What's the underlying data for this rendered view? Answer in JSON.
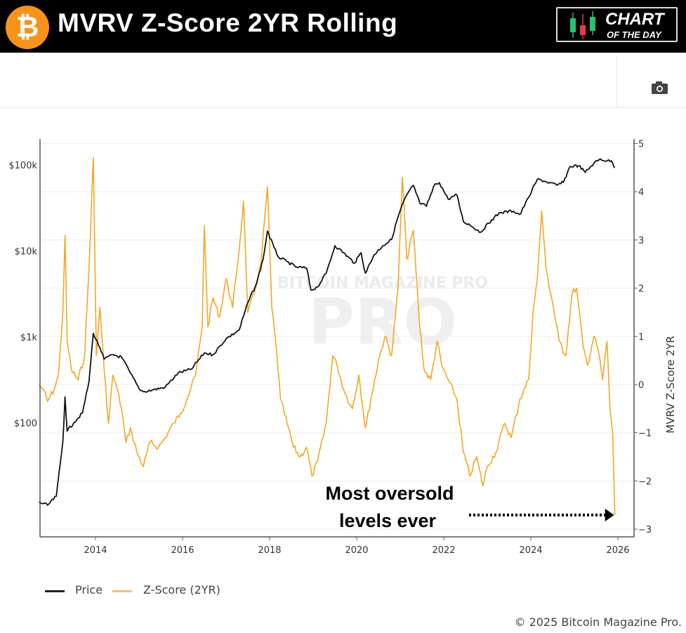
{
  "header": {
    "title": "MVRV Z-Score 2YR Rolling",
    "logo_symbol": "₿",
    "badge_line1": "CHART",
    "badge_line2": "OF THE DAY"
  },
  "toolbar": {
    "camera_icon": "camera-icon"
  },
  "watermark": "BITCOIN MAGAZINE PRO",
  "copyright": "© 2025 Bitcoin Magazine Pro.",
  "colors": {
    "price": "#111111",
    "zscore": "#f5a623",
    "bitcoin": "#f7931a"
  },
  "chart_data": {
    "type": "line",
    "title": "MVRV Z-Score 2YR Rolling",
    "xlabel": "",
    "ylabel_left": "",
    "ylabel_right": "MVRV Z-Score 2YR",
    "x_ticks": [
      "2014",
      "2016",
      "2018",
      "2020",
      "2022",
      "2024",
      "2026"
    ],
    "xlim": [
      2012.65,
      2026.35
    ],
    "y_left_scale": "log",
    "y_left_ticks": [
      {
        "value": 100,
        "label": "$100"
      },
      {
        "value": 1000,
        "label": "$1k"
      },
      {
        "value": 10000,
        "label": "$10k"
      },
      {
        "value": 100000,
        "label": "$100k"
      }
    ],
    "y_right_ticks": [
      "5",
      "4",
      "3",
      "2",
      "1",
      "0",
      "−1",
      "−2",
      "−3"
    ],
    "y_right_lim": [
      -3.1,
      5.1
    ],
    "grid": true,
    "legend_position": "bottom-left",
    "series": [
      {
        "name": "Price",
        "axis": "left",
        "points": [
          [
            2012.7,
            12
          ],
          [
            2012.9,
            11
          ],
          [
            2013.1,
            14
          ],
          [
            2013.25,
            60
          ],
          [
            2013.3,
            200
          ],
          [
            2013.35,
            80
          ],
          [
            2013.5,
            100
          ],
          [
            2013.7,
            130
          ],
          [
            2013.85,
            300
          ],
          [
            2013.95,
            1100
          ],
          [
            2014.1,
            750
          ],
          [
            2014.2,
            550
          ],
          [
            2014.4,
            620
          ],
          [
            2014.6,
            580
          ],
          [
            2014.8,
            380
          ],
          [
            2015.0,
            250
          ],
          [
            2015.1,
            230
          ],
          [
            2015.3,
            240
          ],
          [
            2015.6,
            260
          ],
          [
            2015.9,
            380
          ],
          [
            2016.2,
            420
          ],
          [
            2016.5,
            650
          ],
          [
            2016.7,
            620
          ],
          [
            2017.0,
            950
          ],
          [
            2017.3,
            1200
          ],
          [
            2017.5,
            2500
          ],
          [
            2017.7,
            4200
          ],
          [
            2017.85,
            8000
          ],
          [
            2017.95,
            17000
          ],
          [
            2018.1,
            11000
          ],
          [
            2018.2,
            8500
          ],
          [
            2018.4,
            7500
          ],
          [
            2018.6,
            6500
          ],
          [
            2018.85,
            6300
          ],
          [
            2018.95,
            3500
          ],
          [
            2019.1,
            3800
          ],
          [
            2019.3,
            5500
          ],
          [
            2019.5,
            11500
          ],
          [
            2019.7,
            9500
          ],
          [
            2019.95,
            7200
          ],
          [
            2020.1,
            9500
          ],
          [
            2020.2,
            5500
          ],
          [
            2020.4,
            9000
          ],
          [
            2020.6,
            11500
          ],
          [
            2020.8,
            13500
          ],
          [
            2020.95,
            25000
          ],
          [
            2021.1,
            40000
          ],
          [
            2021.3,
            58000
          ],
          [
            2021.45,
            36000
          ],
          [
            2021.6,
            33000
          ],
          [
            2021.8,
            60000
          ],
          [
            2021.9,
            62000
          ],
          [
            2022.1,
            40000
          ],
          [
            2022.3,
            45000
          ],
          [
            2022.45,
            22000
          ],
          [
            2022.6,
            20000
          ],
          [
            2022.85,
            16500
          ],
          [
            2023.1,
            23000
          ],
          [
            2023.3,
            28000
          ],
          [
            2023.6,
            29000
          ],
          [
            2023.75,
            26500
          ],
          [
            2023.95,
            42000
          ],
          [
            2024.15,
            68000
          ],
          [
            2024.3,
            65000
          ],
          [
            2024.6,
            58000
          ],
          [
            2024.75,
            63000
          ],
          [
            2024.9,
            96000
          ],
          [
            2025.1,
            98000
          ],
          [
            2025.25,
            82000
          ],
          [
            2025.45,
            105000
          ],
          [
            2025.6,
            117000
          ],
          [
            2025.75,
            111000
          ],
          [
            2025.85,
            112000
          ],
          [
            2025.92,
            92000
          ]
        ]
      },
      {
        "name": "Z-Score (2YR)",
        "axis": "right",
        "points": [
          [
            2012.7,
            0
          ],
          [
            2012.8,
            -0.1
          ],
          [
            2012.9,
            -0.35
          ],
          [
            2013.05,
            -0.1
          ],
          [
            2013.15,
            0.2
          ],
          [
            2013.25,
            1.5
          ],
          [
            2013.3,
            3.1
          ],
          [
            2013.35,
            0.9
          ],
          [
            2013.45,
            0.3
          ],
          [
            2013.6,
            0.1
          ],
          [
            2013.75,
            0.6
          ],
          [
            2013.85,
            2.4
          ],
          [
            2013.95,
            4.7
          ],
          [
            2014.02,
            0.6
          ],
          [
            2014.1,
            1.6
          ],
          [
            2014.2,
            0.3
          ],
          [
            2014.3,
            -0.8
          ],
          [
            2014.4,
            0.2
          ],
          [
            2014.5,
            -0.1
          ],
          [
            2014.6,
            -0.5
          ],
          [
            2014.7,
            -1.2
          ],
          [
            2014.8,
            -0.9
          ],
          [
            2014.95,
            -1.4
          ],
          [
            2015.1,
            -1.7
          ],
          [
            2015.25,
            -1.2
          ],
          [
            2015.45,
            -1.3
          ],
          [
            2015.6,
            -1.1
          ],
          [
            2015.8,
            -0.8
          ],
          [
            2015.95,
            -0.6
          ],
          [
            2016.1,
            -0.3
          ],
          [
            2016.3,
            0.2
          ],
          [
            2016.45,
            1.2
          ],
          [
            2016.5,
            3.3
          ],
          [
            2016.58,
            1.2
          ],
          [
            2016.7,
            1.8
          ],
          [
            2016.85,
            1.4
          ],
          [
            2017.0,
            2.2
          ],
          [
            2017.15,
            1.6
          ],
          [
            2017.3,
            2.8
          ],
          [
            2017.4,
            3.8
          ],
          [
            2017.5,
            1.5
          ],
          [
            2017.65,
            1.9
          ],
          [
            2017.8,
            2.5
          ],
          [
            2017.95,
            4.1
          ],
          [
            2018.05,
            1.6
          ],
          [
            2018.15,
            0.8
          ],
          [
            2018.25,
            -0.3
          ],
          [
            2018.4,
            -0.8
          ],
          [
            2018.55,
            -1.3
          ],
          [
            2018.7,
            -1.5
          ],
          [
            2018.85,
            -1.3
          ],
          [
            2018.97,
            -1.9
          ],
          [
            2019.1,
            -1.6
          ],
          [
            2019.3,
            -0.8
          ],
          [
            2019.45,
            0.6
          ],
          [
            2019.55,
            0.4
          ],
          [
            2019.7,
            -0.1
          ],
          [
            2019.9,
            -0.5
          ],
          [
            2020.05,
            0.2
          ],
          [
            2020.2,
            -0.9
          ],
          [
            2020.35,
            -0.2
          ],
          [
            2020.5,
            0.5
          ],
          [
            2020.65,
            1.0
          ],
          [
            2020.8,
            0.6
          ],
          [
            2020.95,
            2.0
          ],
          [
            2021.05,
            4.3
          ],
          [
            2021.15,
            2.6
          ],
          [
            2021.3,
            3.2
          ],
          [
            2021.45,
            1.2
          ],
          [
            2021.55,
            0.3
          ],
          [
            2021.7,
            0.1
          ],
          [
            2021.85,
            0.9
          ],
          [
            2021.95,
            0.4
          ],
          [
            2022.1,
            0.1
          ],
          [
            2022.3,
            -0.3
          ],
          [
            2022.45,
            -1.4
          ],
          [
            2022.6,
            -1.9
          ],
          [
            2022.75,
            -1.5
          ],
          [
            2022.9,
            -2.1
          ],
          [
            2023.0,
            -1.7
          ],
          [
            2023.2,
            -1.4
          ],
          [
            2023.4,
            -0.8
          ],
          [
            2023.55,
            -1.1
          ],
          [
            2023.75,
            -0.3
          ],
          [
            2023.95,
            0.1
          ],
          [
            2024.05,
            1.5
          ],
          [
            2024.15,
            2.2
          ],
          [
            2024.25,
            3.6
          ],
          [
            2024.35,
            2.4
          ],
          [
            2024.5,
            1.7
          ],
          [
            2024.65,
            0.9
          ],
          [
            2024.8,
            0.6
          ],
          [
            2024.95,
            1.9
          ],
          [
            2025.05,
            2.0
          ],
          [
            2025.2,
            0.8
          ],
          [
            2025.3,
            0.4
          ],
          [
            2025.45,
            1.0
          ],
          [
            2025.55,
            0.7
          ],
          [
            2025.65,
            0.1
          ],
          [
            2025.75,
            0.9
          ],
          [
            2025.82,
            -0.5
          ],
          [
            2025.88,
            -1.0
          ],
          [
            2025.93,
            -2.7
          ]
        ]
      }
    ],
    "annotation": {
      "line1": "Most oversold",
      "line2": "levels ever",
      "arrow_to": [
        2025.93,
        -2.75
      ]
    }
  },
  "legend": {
    "items": [
      {
        "label": "Price"
      },
      {
        "label": "Z-Score (2YR)"
      }
    ]
  }
}
